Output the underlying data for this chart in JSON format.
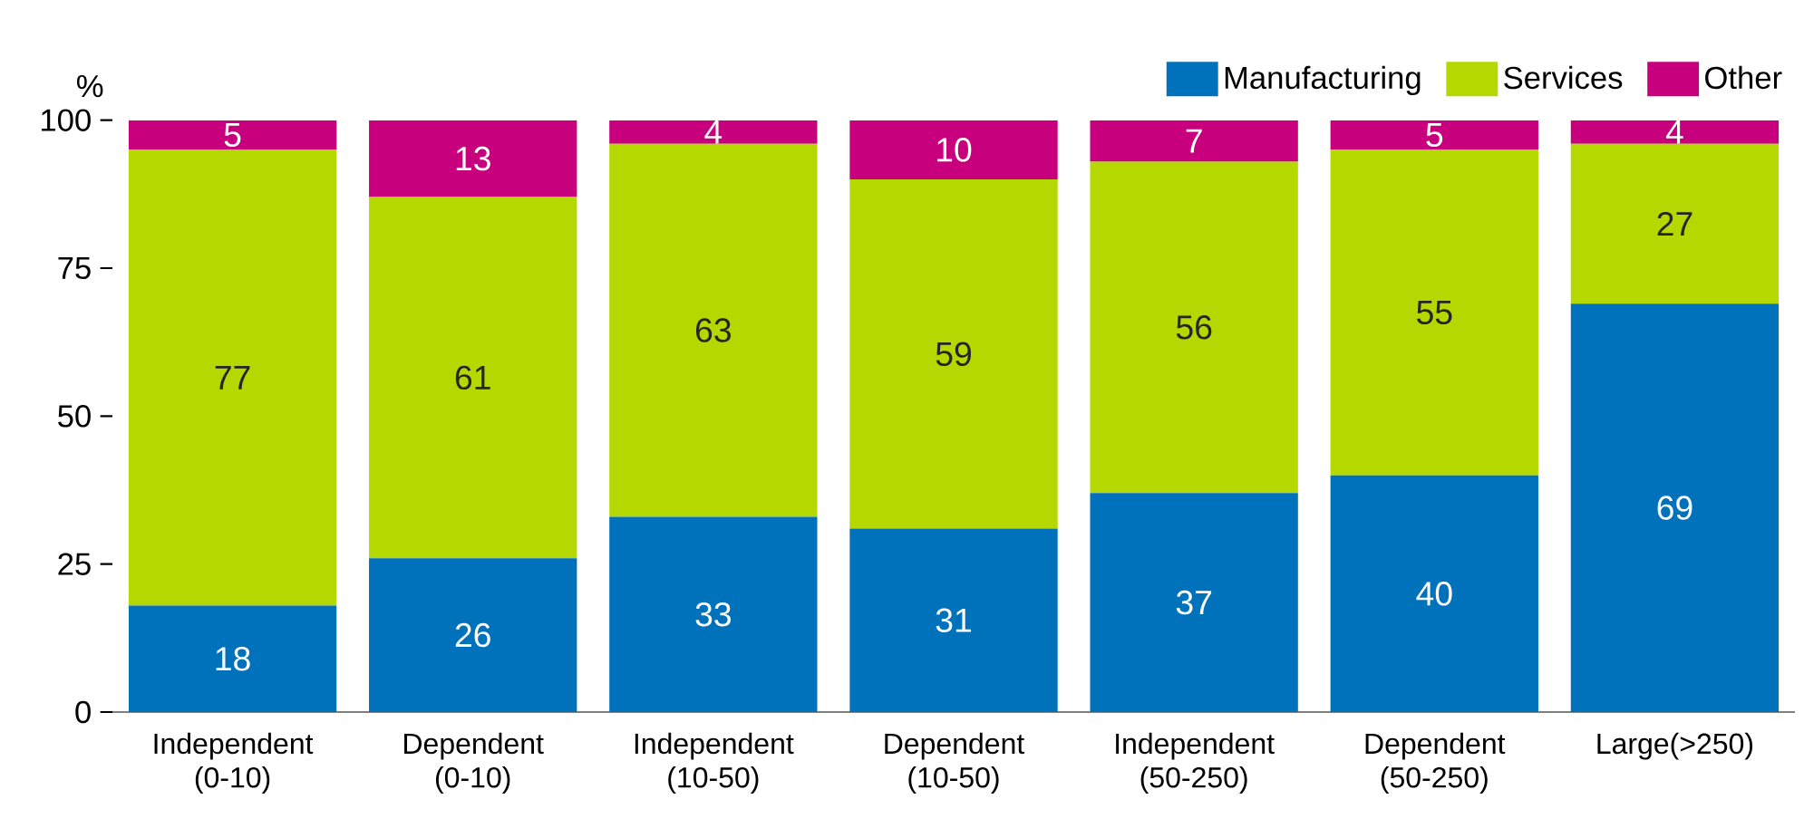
{
  "chart_data": {
    "type": "bar",
    "stacked": true,
    "ylabel": "%",
    "categories": [
      "Independent (0-10)",
      "Dependent (0-10)",
      "Independent (10-50)",
      "Dependent (10-50)",
      "Independent (50-250)",
      "Dependent (50-250)",
      "Large(>250)"
    ],
    "series": [
      {
        "name": "Manufacturing",
        "color": "#0072bc",
        "values": [
          18,
          26,
          33,
          31,
          37,
          40,
          69
        ]
      },
      {
        "name": "Services",
        "color": "#b5d900",
        "values": [
          77,
          61,
          63,
          59,
          56,
          55,
          27
        ]
      },
      {
        "name": "Other",
        "color": "#c8007e",
        "values": [
          5,
          13,
          4,
          10,
          7,
          5,
          4
        ]
      }
    ],
    "ylim": [
      0,
      100
    ],
    "yticks": [
      0,
      25,
      50,
      75,
      100
    ],
    "grid": false,
    "legend": "top right",
    "data_labels": true
  }
}
